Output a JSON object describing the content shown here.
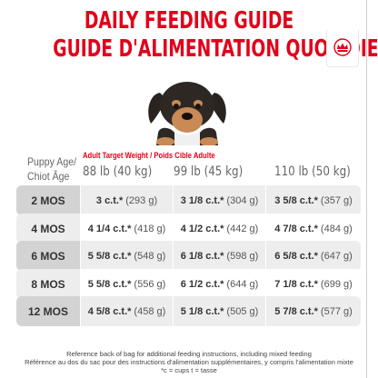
{
  "title_en": "DAILY FEEDING GUIDE",
  "title_fr": "GUIDE D'ALIMENTATION QUOTIDIEN",
  "age_header_line1": "Puppy Age/",
  "age_header_line2": "Chiot Âge",
  "weight_header": "Adult Target Weight / Poids Cible Adulte",
  "columns": [
    "88 lb (40 kg)",
    "99 lb (45 kg)",
    "110 lb (50 kg)"
  ],
  "rows": [
    {
      "age": "2 MOS",
      "cells": [
        {
          "cups": "3 c.t.*",
          "grams": "(293 g)"
        },
        {
          "cups": "3 1/8 c.t.*",
          "grams": "(304 g)"
        },
        {
          "cups": "3 5/8 c.t.*",
          "grams": "(357 g)"
        }
      ]
    },
    {
      "age": "4 MOS",
      "cells": [
        {
          "cups": "4 1/4 c.t.*",
          "grams": "(418 g)"
        },
        {
          "cups": "4 1/2 c.t.*",
          "grams": "(442 g)"
        },
        {
          "cups": "4 7/8 c.t.*",
          "grams": "(484 g)"
        }
      ]
    },
    {
      "age": "6 MOS",
      "cells": [
        {
          "cups": "5 5/8 c.t.*",
          "grams": "(548 g)"
        },
        {
          "cups": "6 1/8 c.t.*",
          "grams": "(598 g)"
        },
        {
          "cups": "6 5/8 c.t.*",
          "grams": "(647 g)"
        }
      ]
    },
    {
      "age": "8 MOS",
      "cells": [
        {
          "cups": "5 5/8 c.t.*",
          "grams": "(556 g)"
        },
        {
          "cups": "6 1/2 c.t.*",
          "grams": "(644 g)"
        },
        {
          "cups": "7 1/8 c.t.*",
          "grams": "(699 g)"
        }
      ]
    },
    {
      "age": "12 MOS",
      "cells": [
        {
          "cups": "4 5/8 c.t.*",
          "grams": "(458 g)"
        },
        {
          "cups": "5 1/8 c.t.*",
          "grams": "(505 g)"
        },
        {
          "cups": "5 7/8 c.t.*",
          "grams": "(577 g)"
        }
      ]
    }
  ],
  "footer": [
    "Reference back of bag for additional feeding instructions, including mixed feeding",
    "Référence au dos du sac pour des instructions d'alimentation supplémentaires, y compris l'alimentation mixte",
    "*c = cups t = tasse"
  ],
  "colors": {
    "brand_red": "#e2001a",
    "row_shade": "#ededed",
    "age_shade": "#c8c8c8"
  },
  "icons": {
    "logo": "crown-logo-icon",
    "image": "puppy-photo"
  }
}
